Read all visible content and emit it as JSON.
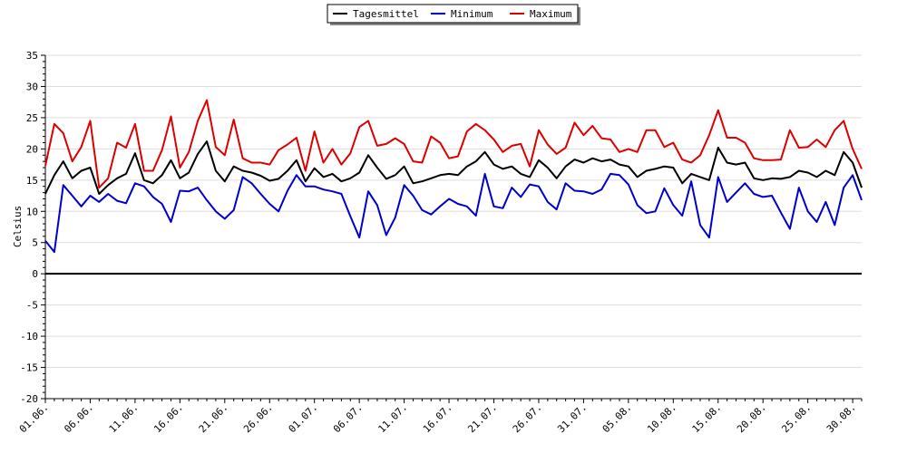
{
  "chart_data": {
    "type": "line",
    "ylabel": "Celsius",
    "ylim": [
      -20,
      35
    ],
    "yticks": [
      -20,
      -15,
      -10,
      -5,
      0,
      5,
      10,
      15,
      20,
      25,
      30,
      35
    ],
    "grid": "horizontal",
    "legend": "top-center",
    "x_start_date": "2000-06-01",
    "x_tick_labels": [
      "01.06.",
      "06.06.",
      "11.06.",
      "16.06.",
      "21.06.",
      "26.06.",
      "01.07.",
      "06.07.",
      "11.07.",
      "16.07.",
      "21.07.",
      "26.07.",
      "31.07.",
      "05.08.",
      "10.08.",
      "15.08.",
      "20.08.",
      "25.08.",
      "30.08."
    ],
    "series": [
      {
        "name": "Tagesmittel",
        "color": "#000000",
        "values": [
          12.8,
          15.8,
          18.0,
          15.3,
          16.5,
          17.0,
          12.8,
          14.2,
          15.3,
          16.0,
          19.3,
          15.0,
          14.5,
          15.8,
          18.2,
          15.3,
          16.2,
          19.2,
          21.2,
          16.5,
          14.8,
          17.2,
          16.5,
          16.2,
          15.7,
          14.9,
          15.2,
          16.5,
          18.2,
          14.8,
          16.9,
          15.5,
          16.0,
          14.8,
          15.3,
          16.2,
          19.0,
          17.0,
          15.2,
          15.8,
          17.2,
          14.5,
          14.8,
          15.3,
          15.8,
          16.0,
          15.8,
          17.2,
          18.0,
          19.5,
          17.5,
          16.8,
          17.2,
          16.0,
          15.5,
          18.2,
          17.0,
          15.3,
          17.2,
          18.3,
          17.8,
          18.5,
          18.0,
          18.3,
          17.5,
          17.2,
          15.5,
          16.5,
          16.8,
          17.2,
          17.0,
          14.5,
          16.0,
          15.5,
          15.0,
          20.2,
          17.8,
          17.5,
          17.8,
          15.3,
          15.0,
          15.3,
          15.2,
          15.5,
          16.5,
          16.2,
          15.5,
          16.5,
          15.8,
          19.5,
          17.8,
          13.8
        ]
      },
      {
        "name": "Minimum",
        "color": "#0000cc",
        "values": [
          5.3,
          3.5,
          14.2,
          12.5,
          10.8,
          12.5,
          11.5,
          12.8,
          11.7,
          11.3,
          14.5,
          14.0,
          12.3,
          11.2,
          8.3,
          13.3,
          13.2,
          13.8,
          11.8,
          10.0,
          8.8,
          10.2,
          15.5,
          14.5,
          12.8,
          11.2,
          10.0,
          13.3,
          15.8,
          14.0,
          14.0,
          13.5,
          13.2,
          12.8,
          9.2,
          5.8,
          13.2,
          11.0,
          6.2,
          9.0,
          14.2,
          12.5,
          10.2,
          9.5,
          10.8,
          12.0,
          11.2,
          10.8,
          9.3,
          16.0,
          10.8,
          10.5,
          13.8,
          12.3,
          14.3,
          14.0,
          11.5,
          10.3,
          14.5,
          13.3,
          13.2,
          12.8,
          13.5,
          16.0,
          15.8,
          14.3,
          11.0,
          9.7,
          10.0,
          13.7,
          11.0,
          9.3,
          14.8,
          7.8,
          5.8,
          15.5,
          11.5,
          13.0,
          14.5,
          12.8,
          12.3,
          12.5,
          9.8,
          7.2,
          13.8,
          10.0,
          8.3,
          11.5,
          7.8,
          13.8,
          15.8,
          11.8
        ]
      },
      {
        "name": "Maximum",
        "color": "#dd0000",
        "values": [
          17.3,
          24.0,
          22.5,
          18.0,
          20.3,
          24.5,
          13.8,
          15.3,
          21.0,
          20.2,
          24.0,
          16.5,
          16.5,
          19.8,
          25.2,
          17.0,
          19.5,
          24.5,
          27.8,
          20.3,
          19.0,
          24.7,
          18.5,
          17.8,
          17.8,
          17.5,
          19.8,
          20.7,
          21.8,
          16.5,
          22.8,
          17.8,
          20.0,
          17.5,
          19.3,
          23.5,
          24.5,
          20.5,
          20.8,
          21.7,
          20.8,
          18.0,
          17.8,
          22.0,
          21.0,
          18.5,
          18.8,
          22.8,
          24.0,
          23.0,
          21.5,
          19.5,
          20.5,
          20.8,
          17.2,
          23.0,
          20.7,
          19.2,
          20.2,
          24.2,
          22.2,
          23.7,
          21.7,
          21.5,
          19.5,
          20.0,
          19.5,
          23.0,
          23.0,
          20.3,
          21.0,
          18.3,
          17.8,
          19.0,
          22.2,
          26.2,
          21.8,
          21.8,
          21.0,
          18.5,
          18.2,
          18.2,
          18.3,
          23.0,
          20.2,
          20.3,
          21.5,
          20.3,
          23.0,
          24.5,
          20.0,
          16.8
        ]
      }
    ]
  }
}
